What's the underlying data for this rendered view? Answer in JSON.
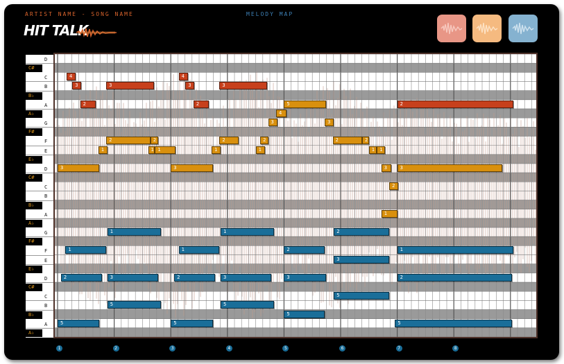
{
  "header": {
    "artist_song": "ARTIST NAME - SONG NAME",
    "map_title": "MELODY MAP",
    "logo_text": "HIT TALK"
  },
  "waveform_buttons": [
    {
      "icon": "waveform-icon",
      "color": "#e89686"
    },
    {
      "icon": "waveform-icon",
      "color": "#f5ba80"
    },
    {
      "icon": "waveform-icon",
      "color": "#85b2d0"
    }
  ],
  "piano_keys": [
    {
      "label": "D",
      "black": false
    },
    {
      "label": "C#",
      "black": true
    },
    {
      "label": "C",
      "black": false
    },
    {
      "label": "B",
      "black": false
    },
    {
      "label": "B♭",
      "black": true
    },
    {
      "label": "A",
      "black": false
    },
    {
      "label": "A♭",
      "black": true
    },
    {
      "label": "G",
      "black": false
    },
    {
      "label": "F#",
      "black": true
    },
    {
      "label": "F",
      "black": false
    },
    {
      "label": "E",
      "black": false
    },
    {
      "label": "E♭",
      "black": true
    },
    {
      "label": "D",
      "black": false
    },
    {
      "label": "C#",
      "black": true
    },
    {
      "label": "C",
      "black": false
    },
    {
      "label": "B",
      "black": false
    },
    {
      "label": "B♭",
      "black": true
    },
    {
      "label": "A",
      "black": false
    },
    {
      "label": "A♭",
      "black": true
    },
    {
      "label": "G",
      "black": false
    },
    {
      "label": "F#",
      "black": true
    },
    {
      "label": "F",
      "black": false
    },
    {
      "label": "E",
      "black": false
    },
    {
      "label": "E♭",
      "black": true
    },
    {
      "label": "D",
      "black": false
    },
    {
      "label": "C#",
      "black": true
    },
    {
      "label": "C",
      "black": false
    },
    {
      "label": "B",
      "black": false
    },
    {
      "label": "B♭",
      "black": true
    },
    {
      "label": "A",
      "black": false
    },
    {
      "label": "A♭",
      "black": true
    }
  ],
  "beats": [
    "1",
    "2",
    "3",
    "4",
    "5",
    "6",
    "7",
    "8"
  ],
  "notes": [
    {
      "label": "4",
      "row": 2,
      "start": 0.16,
      "len": 0.16,
      "color": "red"
    },
    {
      "label": "4",
      "row": 2,
      "start": 2.14,
      "len": 0.16,
      "color": "red"
    },
    {
      "label": "3",
      "row": 3,
      "start": 0.26,
      "len": 0.16,
      "color": "red"
    },
    {
      "label": "3",
      "row": 3,
      "start": 0.86,
      "len": 0.84,
      "color": "red"
    },
    {
      "label": "3",
      "row": 3,
      "start": 2.26,
      "len": 0.16,
      "color": "red"
    },
    {
      "label": "3",
      "row": 3,
      "start": 2.86,
      "len": 0.84,
      "color": "red"
    },
    {
      "label": "2",
      "row": 5,
      "start": 0.4,
      "len": 0.27,
      "color": "red"
    },
    {
      "label": "2",
      "row": 5,
      "start": 2.4,
      "len": 0.27,
      "color": "red"
    },
    {
      "label": "2",
      "row": 5,
      "start": 6.0,
      "len": 2.05,
      "color": "red"
    },
    {
      "label": "5",
      "row": 5,
      "start": 4.0,
      "len": 0.74,
      "color": "orange"
    },
    {
      "label": "4",
      "row": 6,
      "start": 3.86,
      "len": 0.18,
      "color": "orange"
    },
    {
      "label": "3",
      "row": 7,
      "start": 3.72,
      "len": 0.16,
      "color": "orange"
    },
    {
      "label": "3",
      "row": 7,
      "start": 4.72,
      "len": 0.16,
      "color": "orange"
    },
    {
      "label": "2",
      "row": 9,
      "start": 0.86,
      "len": 0.78,
      "color": "orange"
    },
    {
      "label": "2",
      "row": 9,
      "start": 1.64,
      "len": 0.14,
      "color": "orange"
    },
    {
      "label": "2",
      "row": 9,
      "start": 2.86,
      "len": 0.34,
      "color": "orange"
    },
    {
      "label": "2",
      "row": 9,
      "start": 3.58,
      "len": 0.14,
      "color": "orange"
    },
    {
      "label": "2",
      "row": 9,
      "start": 4.86,
      "len": 0.52,
      "color": "orange"
    },
    {
      "label": "2",
      "row": 9,
      "start": 5.38,
      "len": 0.12,
      "color": "orange"
    },
    {
      "label": "1",
      "row": 10,
      "start": 0.72,
      "len": 0.16,
      "color": "orange"
    },
    {
      "label": "1",
      "row": 10,
      "start": 1.6,
      "len": 0.12,
      "color": "orange"
    },
    {
      "label": "1",
      "row": 10,
      "start": 1.72,
      "len": 0.36,
      "color": "orange"
    },
    {
      "label": "1",
      "row": 10,
      "start": 2.72,
      "len": 0.16,
      "color": "orange"
    },
    {
      "label": "1",
      "row": 10,
      "start": 3.5,
      "len": 0.16,
      "color": "orange"
    },
    {
      "label": "1",
      "row": 10,
      "start": 5.5,
      "len": 0.14,
      "color": "orange"
    },
    {
      "label": "1",
      "row": 10,
      "start": 5.64,
      "len": 0.14,
      "color": "orange"
    },
    {
      "label": "3",
      "row": 12,
      "start": 0.0,
      "len": 0.74,
      "color": "orange"
    },
    {
      "label": "3",
      "row": 12,
      "start": 2.0,
      "len": 0.74,
      "color": "orange"
    },
    {
      "label": "3",
      "row": 12,
      "start": 5.72,
      "len": 0.18,
      "color": "orange"
    },
    {
      "label": "3",
      "row": 12,
      "start": 6.0,
      "len": 1.86,
      "color": "orange"
    },
    {
      "label": "2",
      "row": 14,
      "start": 5.86,
      "len": 0.16,
      "color": "orange"
    },
    {
      "label": "1",
      "row": 17,
      "start": 5.72,
      "len": 0.28,
      "color": "orange"
    },
    {
      "label": "1",
      "row": 19,
      "start": 0.88,
      "len": 0.94,
      "color": "blue"
    },
    {
      "label": "1",
      "row": 19,
      "start": 2.88,
      "len": 0.94,
      "color": "blue"
    },
    {
      "label": "2",
      "row": 19,
      "start": 4.88,
      "len": 0.98,
      "color": "blue"
    },
    {
      "label": "1",
      "row": 21,
      "start": 0.14,
      "len": 0.72,
      "color": "blue"
    },
    {
      "label": "1",
      "row": 21,
      "start": 2.14,
      "len": 0.72,
      "color": "blue"
    },
    {
      "label": "2",
      "row": 21,
      "start": 4.0,
      "len": 0.72,
      "color": "blue"
    },
    {
      "label": "1",
      "row": 21,
      "start": 6.0,
      "len": 2.05,
      "color": "blue"
    },
    {
      "label": "3",
      "row": 22,
      "start": 4.88,
      "len": 0.98,
      "color": "blue"
    },
    {
      "label": "2",
      "row": 24,
      "start": 0.06,
      "len": 0.72,
      "color": "blue"
    },
    {
      "label": "3",
      "row": 24,
      "start": 0.88,
      "len": 0.9,
      "color": "blue"
    },
    {
      "label": "2",
      "row": 24,
      "start": 2.06,
      "len": 0.72,
      "color": "blue"
    },
    {
      "label": "3",
      "row": 24,
      "start": 2.88,
      "len": 0.9,
      "color": "blue"
    },
    {
      "label": "3",
      "row": 24,
      "start": 4.0,
      "len": 0.74,
      "color": "blue"
    },
    {
      "label": "2",
      "row": 24,
      "start": 6.0,
      "len": 2.03,
      "color": "blue"
    },
    {
      "label": "5",
      "row": 26,
      "start": 4.88,
      "len": 0.98,
      "color": "blue"
    },
    {
      "label": "5",
      "row": 27,
      "start": 0.88,
      "len": 0.94,
      "color": "blue"
    },
    {
      "label": "5",
      "row": 27,
      "start": 2.88,
      "len": 0.94,
      "color": "blue"
    },
    {
      "label": "5",
      "row": 28,
      "start": 4.0,
      "len": 0.72,
      "color": "blue"
    },
    {
      "label": "5",
      "row": 29,
      "start": 0.0,
      "len": 0.74,
      "color": "blue"
    },
    {
      "label": "5",
      "row": 29,
      "start": 2.0,
      "len": 0.74,
      "color": "blue"
    },
    {
      "label": "5",
      "row": 29,
      "start": 5.96,
      "len": 2.07,
      "color": "blue"
    }
  ]
}
